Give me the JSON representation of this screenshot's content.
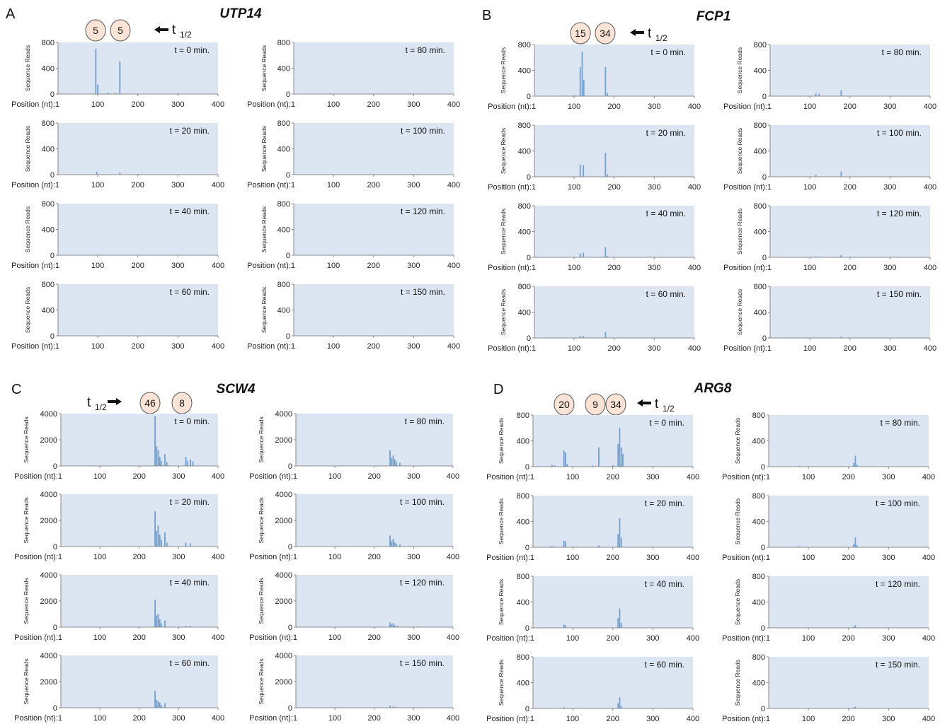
{
  "panels": [
    {
      "letter": "A",
      "gene": "UTP14",
      "ylim": [
        0,
        800
      ],
      "yticks": [
        "0",
        "400",
        "800"
      ],
      "bubbles": [
        "5",
        "5"
      ],
      "thalf": {
        "t": "t",
        "sub": "1/2"
      },
      "timepoints": [
        {
          "label": "t = 0 min.",
          "peaks": [
            [
              95,
              700
            ],
            [
              100,
              150
            ],
            [
              155,
              510
            ],
            [
              125,
              20
            ],
            [
              145,
              15
            ]
          ]
        },
        {
          "label": "t = 20 min.",
          "peaks": [
            [
              97,
              45
            ],
            [
              155,
              30
            ]
          ]
        },
        {
          "label": "t = 40 min.",
          "peaks": []
        },
        {
          "label": "t = 60 min.",
          "peaks": []
        },
        {
          "label": "t = 80 min.",
          "peaks": []
        },
        {
          "label": "t = 100 min.",
          "peaks": []
        },
        {
          "label": "t = 120 min.",
          "peaks": []
        },
        {
          "label": "t = 150 min.",
          "peaks": []
        }
      ]
    },
    {
      "letter": "B",
      "gene": "FCP1",
      "ylim": [
        0,
        800
      ],
      "yticks": [
        "0",
        "400",
        "800"
      ],
      "bubbles": [
        "15",
        "34"
      ],
      "thalf": {
        "t": "t",
        "sub": "1/2"
      },
      "timepoints": [
        {
          "label": "t = 0 min.",
          "peaks": [
            [
              115,
              450
            ],
            [
              120,
              690
            ],
            [
              124,
              250
            ],
            [
              178,
              450
            ],
            [
              183,
              50
            ],
            [
              72,
              10
            ],
            [
              100,
              15
            ]
          ]
        },
        {
          "label": "t = 20 min.",
          "peaks": [
            [
              115,
              190
            ],
            [
              123,
              180
            ],
            [
              178,
              370
            ],
            [
              183,
              40
            ]
          ]
        },
        {
          "label": "t = 40 min.",
          "peaks": [
            [
              115,
              60
            ],
            [
              123,
              70
            ],
            [
              178,
              160
            ],
            [
              183,
              20
            ]
          ]
        },
        {
          "label": "t = 60 min.",
          "peaks": [
            [
              115,
              30
            ],
            [
              123,
              30
            ],
            [
              178,
              90
            ]
          ]
        },
        {
          "label": "t = 80 min.",
          "peaks": [
            [
              115,
              40
            ],
            [
              123,
              35
            ],
            [
              178,
              90
            ]
          ]
        },
        {
          "label": "t = 100 min.",
          "peaks": [
            [
              115,
              30
            ],
            [
              178,
              80
            ]
          ]
        },
        {
          "label": "t = 120 min.",
          "peaks": [
            [
              115,
              15
            ],
            [
              178,
              35
            ]
          ]
        },
        {
          "label": "t = 150 min.",
          "peaks": [
            [
              178,
              20
            ]
          ]
        }
      ]
    },
    {
      "letter": "C",
      "gene": "SCW4",
      "ylim": [
        0,
        4000
      ],
      "yticks": [
        "0",
        "2000",
        "4000"
      ],
      "bubbles": [
        "46",
        "8"
      ],
      "thalf": {
        "t": "t",
        "sub": "1/2"
      },
      "timepoints": [
        {
          "label": "t = 0 min.",
          "peaks": [
            [
              240,
              3800
            ],
            [
              244,
              1500
            ],
            [
              248,
              1200
            ],
            [
              252,
              700
            ],
            [
              256,
              400
            ],
            [
              265,
              900
            ],
            [
              270,
              300
            ],
            [
              318,
              700
            ],
            [
              322,
              400
            ],
            [
              330,
              500
            ],
            [
              336,
              350
            ]
          ]
        },
        {
          "label": "t = 20 min.",
          "peaks": [
            [
              240,
              2700
            ],
            [
              244,
              1200
            ],
            [
              248,
              1600
            ],
            [
              252,
              900
            ],
            [
              256,
              500
            ],
            [
              265,
              1100
            ],
            [
              270,
              300
            ],
            [
              318,
              300
            ],
            [
              330,
              250
            ]
          ]
        },
        {
          "label": "t = 40 min.",
          "peaks": [
            [
              240,
              2100
            ],
            [
              244,
              900
            ],
            [
              248,
              1000
            ],
            [
              252,
              600
            ],
            [
              256,
              300
            ],
            [
              265,
              500
            ],
            [
              318,
              100
            ],
            [
              330,
              80
            ]
          ]
        },
        {
          "label": "t = 60 min.",
          "peaks": [
            [
              240,
              1300
            ],
            [
              244,
              600
            ],
            [
              248,
              500
            ],
            [
              252,
              400
            ],
            [
              256,
              200
            ],
            [
              265,
              350
            ]
          ]
        },
        {
          "label": "t = 80 min.",
          "peaks": [
            [
              240,
              1200
            ],
            [
              244,
              600
            ],
            [
              248,
              800
            ],
            [
              252,
              500
            ],
            [
              256,
              300
            ],
            [
              265,
              250
            ]
          ]
        },
        {
          "label": "t = 100 min.",
          "peaks": [
            [
              240,
              850
            ],
            [
              244,
              400
            ],
            [
              248,
              600
            ],
            [
              252,
              300
            ],
            [
              256,
              200
            ],
            [
              265,
              150
            ]
          ]
        },
        {
          "label": "t = 120 min.",
          "peaks": [
            [
              240,
              350
            ],
            [
              244,
              200
            ],
            [
              248,
              300
            ],
            [
              252,
              150
            ],
            [
              260,
              100
            ]
          ]
        },
        {
          "label": "t = 150 min.",
          "peaks": [
            [
              240,
              150
            ],
            [
              248,
              100
            ],
            [
              256,
              80
            ]
          ]
        }
      ]
    },
    {
      "letter": "D",
      "gene": "ARG8",
      "ylim": [
        0,
        800
      ],
      "yticks": [
        "0",
        "400",
        "800"
      ],
      "bubbles": [
        "20",
        "9",
        "34"
      ],
      "thalf": {
        "t": "t",
        "sub": "1/2"
      },
      "timepoints": [
        {
          "label": "t = 0 min.",
          "peaks": [
            [
              48,
              30
            ],
            [
              55,
              20
            ],
            [
              78,
              250
            ],
            [
              82,
              220
            ],
            [
              86,
              40
            ],
            [
              150,
              20
            ],
            [
              165,
              300
            ],
            [
              200,
              20
            ],
            [
              213,
              350
            ],
            [
              217,
              600
            ],
            [
              221,
              300
            ],
            [
              225,
              200
            ]
          ]
        },
        {
          "label": "t = 20 min.",
          "peaks": [
            [
              48,
              20
            ],
            [
              78,
              100
            ],
            [
              82,
              90
            ],
            [
              165,
              30
            ],
            [
              213,
              200
            ],
            [
              217,
              450
            ],
            [
              221,
              150
            ]
          ]
        },
        {
          "label": "t = 40 min.",
          "peaks": [
            [
              48,
              10
            ],
            [
              78,
              50
            ],
            [
              82,
              40
            ],
            [
              213,
              150
            ],
            [
              217,
              300
            ],
            [
              221,
              80
            ]
          ]
        },
        {
          "label": "t = 60 min.",
          "peaks": [
            [
              78,
              20
            ],
            [
              213,
              80
            ],
            [
              217,
              170
            ],
            [
              221,
              40
            ]
          ]
        },
        {
          "label": "t = 80 min.",
          "peaks": [
            [
              78,
              15
            ],
            [
              213,
              60
            ],
            [
              217,
              170
            ],
            [
              221,
              30
            ]
          ]
        },
        {
          "label": "t = 100 min.",
          "peaks": [
            [
              78,
              15
            ],
            [
              213,
              50
            ],
            [
              217,
              150
            ],
            [
              221,
              30
            ]
          ]
        },
        {
          "label": "t = 120 min.",
          "peaks": [
            [
              213,
              20
            ],
            [
              217,
              40
            ]
          ]
        },
        {
          "label": "t = 150 min.",
          "peaks": [
            [
              213,
              15
            ],
            [
              217,
              30
            ]
          ]
        }
      ]
    }
  ],
  "axis": {
    "ylabel": "Sequence Reads",
    "xlabel_A": "Position (nt):1",
    "xlabel_C": "Position (nt):1",
    "xlabel_C2": "Position (nt):1",
    "xticks": [
      "100",
      "200",
      "300",
      "400"
    ],
    "xlim": [
      1,
      400
    ]
  },
  "chart_data": {
    "type": "bar",
    "description_values_in": "sequence reads vs nucleotide position",
    "xlim": [
      1,
      400
    ],
    "panels": [
      {
        "gene": "UTP14",
        "ylim": [
          0,
          800
        ],
        "timepoints_min": [
          0,
          20,
          40,
          60,
          80,
          100,
          120,
          150
        ]
      },
      {
        "gene": "FCP1",
        "ylim": [
          0,
          800
        ],
        "timepoints_min": [
          0,
          20,
          40,
          60,
          80,
          100,
          120,
          150
        ]
      },
      {
        "gene": "SCW4",
        "ylim": [
          0,
          4000
        ],
        "timepoints_min": [
          0,
          20,
          40,
          60,
          80,
          100,
          120,
          150
        ]
      },
      {
        "gene": "ARG8",
        "ylim": [
          0,
          800
        ],
        "timepoints_min": [
          0,
          20,
          40,
          60,
          80,
          100,
          120,
          150
        ]
      }
    ]
  }
}
